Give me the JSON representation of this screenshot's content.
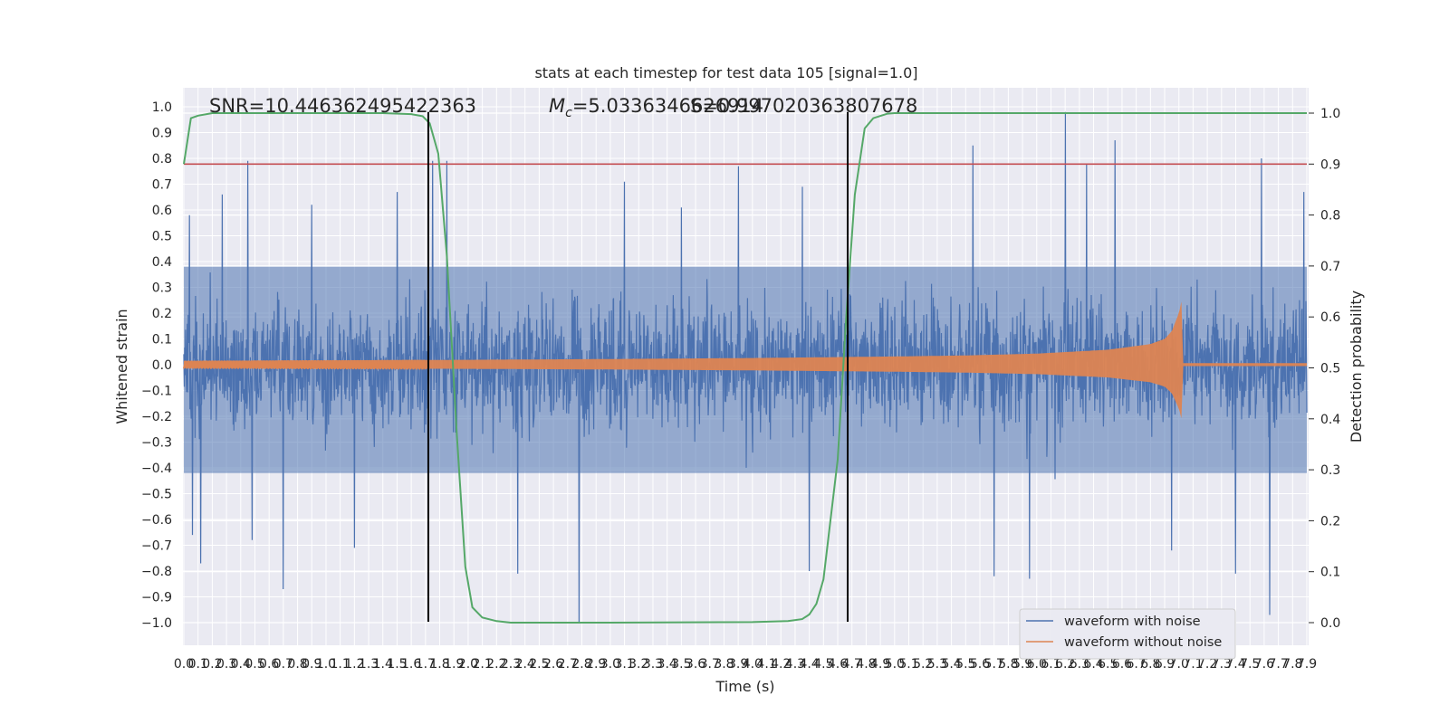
{
  "chart_data": {
    "type": "line",
    "title": "stats at each timestep for test data 105 [signal=1.0]",
    "xlabel": "Time (s)",
    "ylabel": "Whitened strain",
    "y2label": "Detection probability",
    "xlim": [
      0.0,
      7.9
    ],
    "ylim": [
      -1.1,
      1.1
    ],
    "y2lim": [
      -0.05,
      1.05
    ],
    "x_ticks": [
      0.0,
      0.1,
      0.2,
      0.3,
      0.4,
      0.5,
      0.6,
      0.7,
      0.8,
      0.9,
      1.0,
      1.1,
      1.2,
      1.3,
      1.4,
      1.5,
      1.6,
      1.7,
      1.8,
      1.9,
      2.0,
      2.1,
      2.2,
      2.3,
      2.4,
      2.5,
      2.6,
      2.7,
      2.8,
      2.9,
      3.0,
      3.1,
      3.2,
      3.3,
      3.4,
      3.5,
      3.6,
      3.7,
      3.8,
      3.9,
      4.0,
      4.1,
      4.2,
      4.3,
      4.4,
      4.5,
      4.6,
      4.7,
      4.8,
      4.9,
      5.0,
      5.1,
      5.2,
      5.3,
      5.4,
      5.5,
      5.6,
      5.7,
      5.8,
      5.9,
      6.0,
      6.1,
      6.2,
      6.3,
      6.4,
      6.5,
      6.6,
      6.7,
      6.8,
      6.9,
      7.0,
      7.1,
      7.2,
      7.3,
      7.4,
      7.5,
      7.6,
      7.7,
      7.8,
      7.9
    ],
    "y_ticks": [
      -1.0,
      -0.9,
      -0.8,
      -0.7,
      -0.6,
      -0.5,
      -0.4,
      -0.3,
      -0.2,
      -0.1,
      0.0,
      0.1,
      0.2,
      0.3,
      0.4,
      0.5,
      0.6,
      0.7,
      0.8,
      0.9,
      1.0
    ],
    "y2_ticks": [
      0.0,
      0.1,
      0.2,
      0.3,
      0.4,
      0.5,
      0.6,
      0.7,
      0.8,
      0.9,
      1.0
    ],
    "grid": true,
    "legend_position": "lower-right",
    "annotations": {
      "snr": "SNR=10.446362495422363",
      "mc_symbol": "M",
      "mc_sub": "c",
      "mc_value": "=5.0336346626914",
      "overlap_value": "S=0.997020363807678"
    },
    "threshold": {
      "y2": 0.9,
      "color": "#c44e52"
    },
    "vlines": [
      1.72,
      4.67
    ],
    "series": [
      {
        "name": "waveform with noise",
        "color": "#4c72b0",
        "axis": "left",
        "noise_band": [
          -0.42,
          0.38
        ],
        "peaks": [
          {
            "x": 0.04,
            "y": 0.58
          },
          {
            "x": 0.06,
            "y": -0.66
          },
          {
            "x": 0.12,
            "y": -0.77
          },
          {
            "x": 0.27,
            "y": 0.66
          },
          {
            "x": 0.45,
            "y": 0.79
          },
          {
            "x": 0.48,
            "y": -0.68
          },
          {
            "x": 0.7,
            "y": -0.87
          },
          {
            "x": 0.9,
            "y": 0.62
          },
          {
            "x": 1.2,
            "y": -0.71
          },
          {
            "x": 1.5,
            "y": 0.67
          },
          {
            "x": 1.75,
            "y": 0.79
          },
          {
            "x": 1.85,
            "y": 0.79
          },
          {
            "x": 2.35,
            "y": -0.81
          },
          {
            "x": 2.78,
            "y": -1.0
          },
          {
            "x": 3.1,
            "y": 0.71
          },
          {
            "x": 3.5,
            "y": 0.61
          },
          {
            "x": 3.9,
            "y": 0.77
          },
          {
            "x": 4.35,
            "y": 0.69
          },
          {
            "x": 4.4,
            "y": -0.8
          },
          {
            "x": 5.55,
            "y": 0.85
          },
          {
            "x": 5.7,
            "y": -0.82
          },
          {
            "x": 5.95,
            "y": -0.83
          },
          {
            "x": 6.2,
            "y": 0.98
          },
          {
            "x": 6.35,
            "y": 0.78
          },
          {
            "x": 6.55,
            "y": 0.87
          },
          {
            "x": 6.95,
            "y": -0.72
          },
          {
            "x": 7.4,
            "y": -0.81
          },
          {
            "x": 7.58,
            "y": 0.8
          },
          {
            "x": 7.64,
            "y": -0.97
          },
          {
            "x": 7.88,
            "y": 0.67
          }
        ]
      },
      {
        "name": "waveform without noise",
        "color": "#dd8452",
        "axis": "left",
        "envelope": [
          [
            0.0,
            0.015
          ],
          [
            1.0,
            0.017
          ],
          [
            2.0,
            0.019
          ],
          [
            3.0,
            0.022
          ],
          [
            4.0,
            0.026
          ],
          [
            5.0,
            0.032
          ],
          [
            5.5,
            0.036
          ],
          [
            6.0,
            0.043
          ],
          [
            6.5,
            0.058
          ],
          [
            6.8,
            0.08
          ],
          [
            6.9,
            0.1
          ],
          [
            6.95,
            0.13
          ],
          [
            7.0,
            0.2
          ],
          [
            7.02,
            0.25
          ],
          [
            7.03,
            0.006
          ],
          [
            7.9,
            0.006
          ]
        ]
      },
      {
        "name": "detection probability",
        "color": "#55a868",
        "axis": "right",
        "x": [
          0.0,
          0.05,
          0.1,
          0.2,
          0.5,
          1.0,
          1.4,
          1.6,
          1.68,
          1.73,
          1.79,
          1.85,
          1.92,
          1.98,
          2.03,
          2.1,
          2.2,
          2.3,
          2.4,
          3.0,
          4.0,
          4.25,
          4.35,
          4.4,
          4.45,
          4.5,
          4.54,
          4.6,
          4.66,
          4.72,
          4.79,
          4.85,
          4.95,
          5.0,
          6.0,
          7.0,
          7.9
        ],
        "y": [
          0.9,
          0.99,
          0.995,
          1.0,
          1.0,
          1.0,
          1.0,
          0.998,
          0.994,
          0.98,
          0.92,
          0.72,
          0.37,
          0.11,
          0.03,
          0.01,
          0.003,
          0.0,
          0.0,
          0.0,
          0.001,
          0.003,
          0.007,
          0.016,
          0.037,
          0.085,
          0.18,
          0.32,
          0.6,
          0.84,
          0.97,
          0.99,
          0.999,
          1.0,
          1.0,
          1.0,
          1.0
        ]
      }
    ]
  }
}
